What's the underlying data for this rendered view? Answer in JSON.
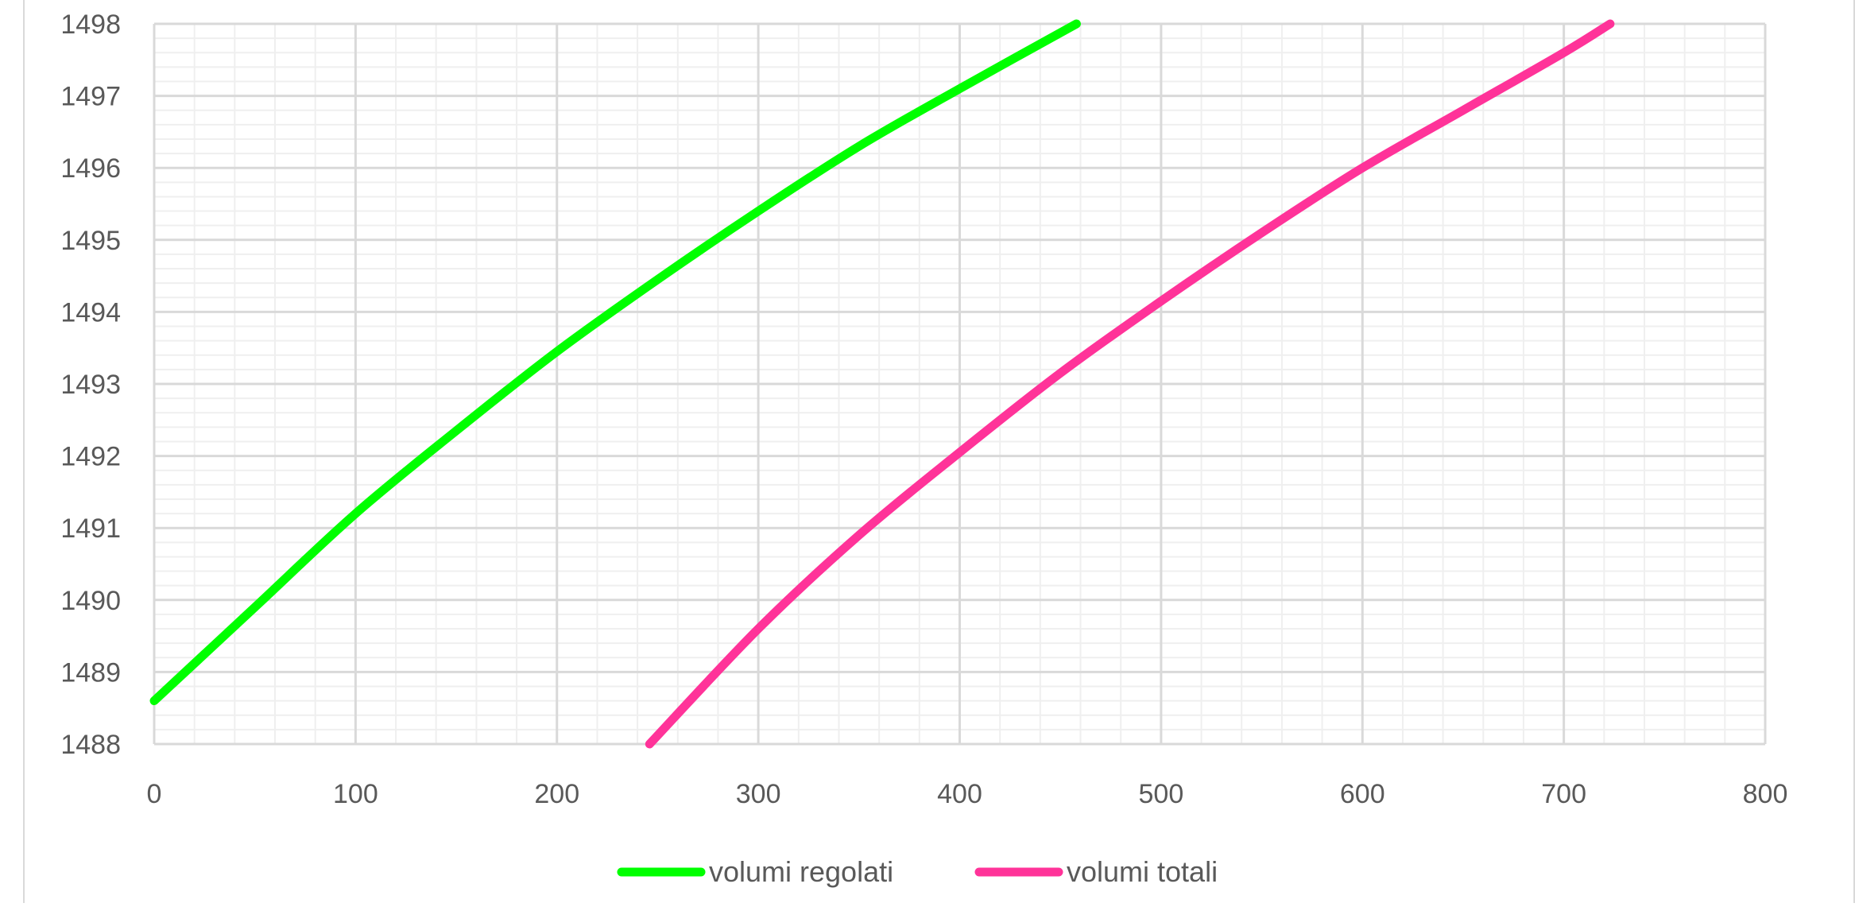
{
  "chart_data": {
    "type": "line",
    "title": "",
    "xlabel": "",
    "ylabel": "",
    "xlim": [
      0,
      800
    ],
    "ylim": [
      1488,
      1498
    ],
    "x_ticks": [
      0,
      100,
      200,
      300,
      400,
      500,
      600,
      700,
      800
    ],
    "y_ticks": [
      1488,
      1489,
      1490,
      1491,
      1492,
      1493,
      1494,
      1495,
      1496,
      1497,
      1498
    ],
    "x_tick_labels": [
      "0",
      "100",
      "200",
      "300",
      "400",
      "500",
      "600",
      "700",
      "800"
    ],
    "y_tick_labels": [
      "1488",
      "1489",
      "1490",
      "1491",
      "1492",
      "1493",
      "1494",
      "1495",
      "1496",
      "1497",
      "1498"
    ],
    "grid": {
      "major": true,
      "minor": true,
      "minor_x_step": 20,
      "minor_y_step": 0.2
    },
    "legend": "bottom-center",
    "series": [
      {
        "name": "volumi regolati",
        "color": "#00ff00",
        "x": [
          0,
          50,
          100,
          150,
          200,
          250,
          300,
          350,
          400,
          458
        ],
        "y": [
          1488.6,
          1489.9,
          1491.2,
          1492.35,
          1493.45,
          1494.45,
          1495.4,
          1496.3,
          1497.1,
          1498.0
        ]
      },
      {
        "name": "volumi totali",
        "color": "#ff3399",
        "x": [
          246,
          300,
          350,
          400,
          450,
          500,
          550,
          600,
          650,
          700,
          723
        ],
        "y": [
          1488.0,
          1489.6,
          1490.9,
          1492.05,
          1493.15,
          1494.15,
          1495.1,
          1496.0,
          1496.8,
          1497.6,
          1498.0
        ]
      }
    ]
  }
}
